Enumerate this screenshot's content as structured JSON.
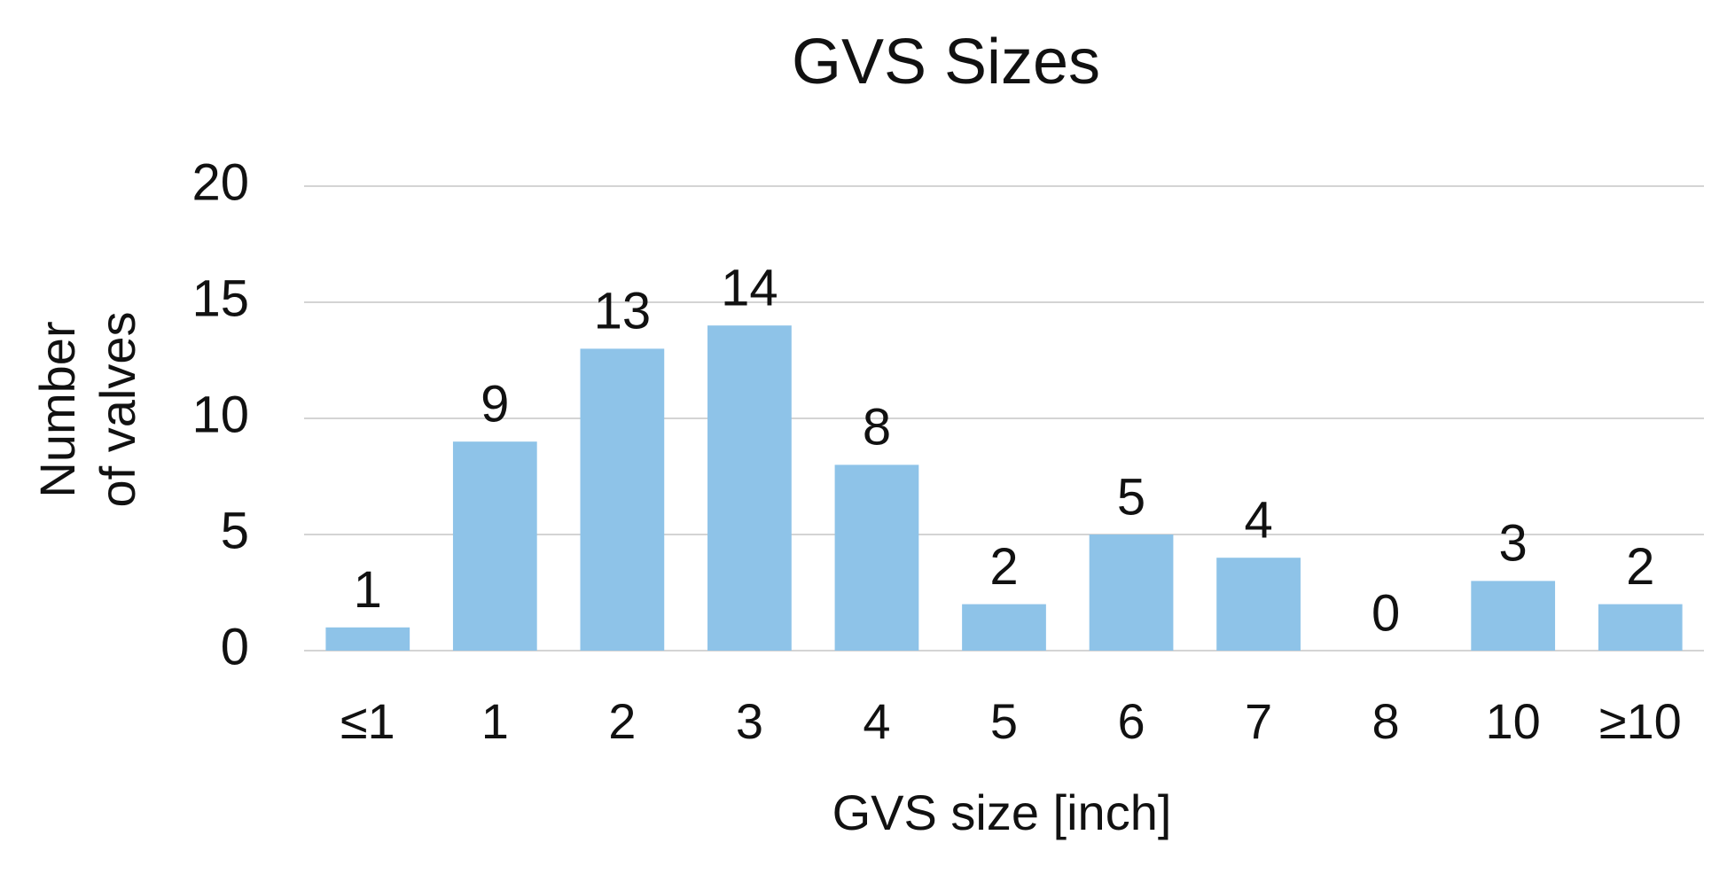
{
  "chart_data": {
    "type": "bar",
    "title": "GVS Sizes",
    "x_label": "GVS size [inch]",
    "y_label": [
      "Number",
      "of valves"
    ],
    "categories": [
      "≤1",
      "1",
      "2",
      "3",
      "4",
      "5",
      "6",
      "7",
      "8",
      "10",
      "≥10"
    ],
    "values": [
      1,
      9,
      13,
      14,
      8,
      2,
      5,
      4,
      0,
      3,
      2
    ],
    "color": "#8ec3e8",
    "ylim": [
      0,
      20
    ],
    "yticks": [
      0,
      5,
      10,
      15,
      20
    ],
    "grid": true,
    "data_labels": true
  }
}
